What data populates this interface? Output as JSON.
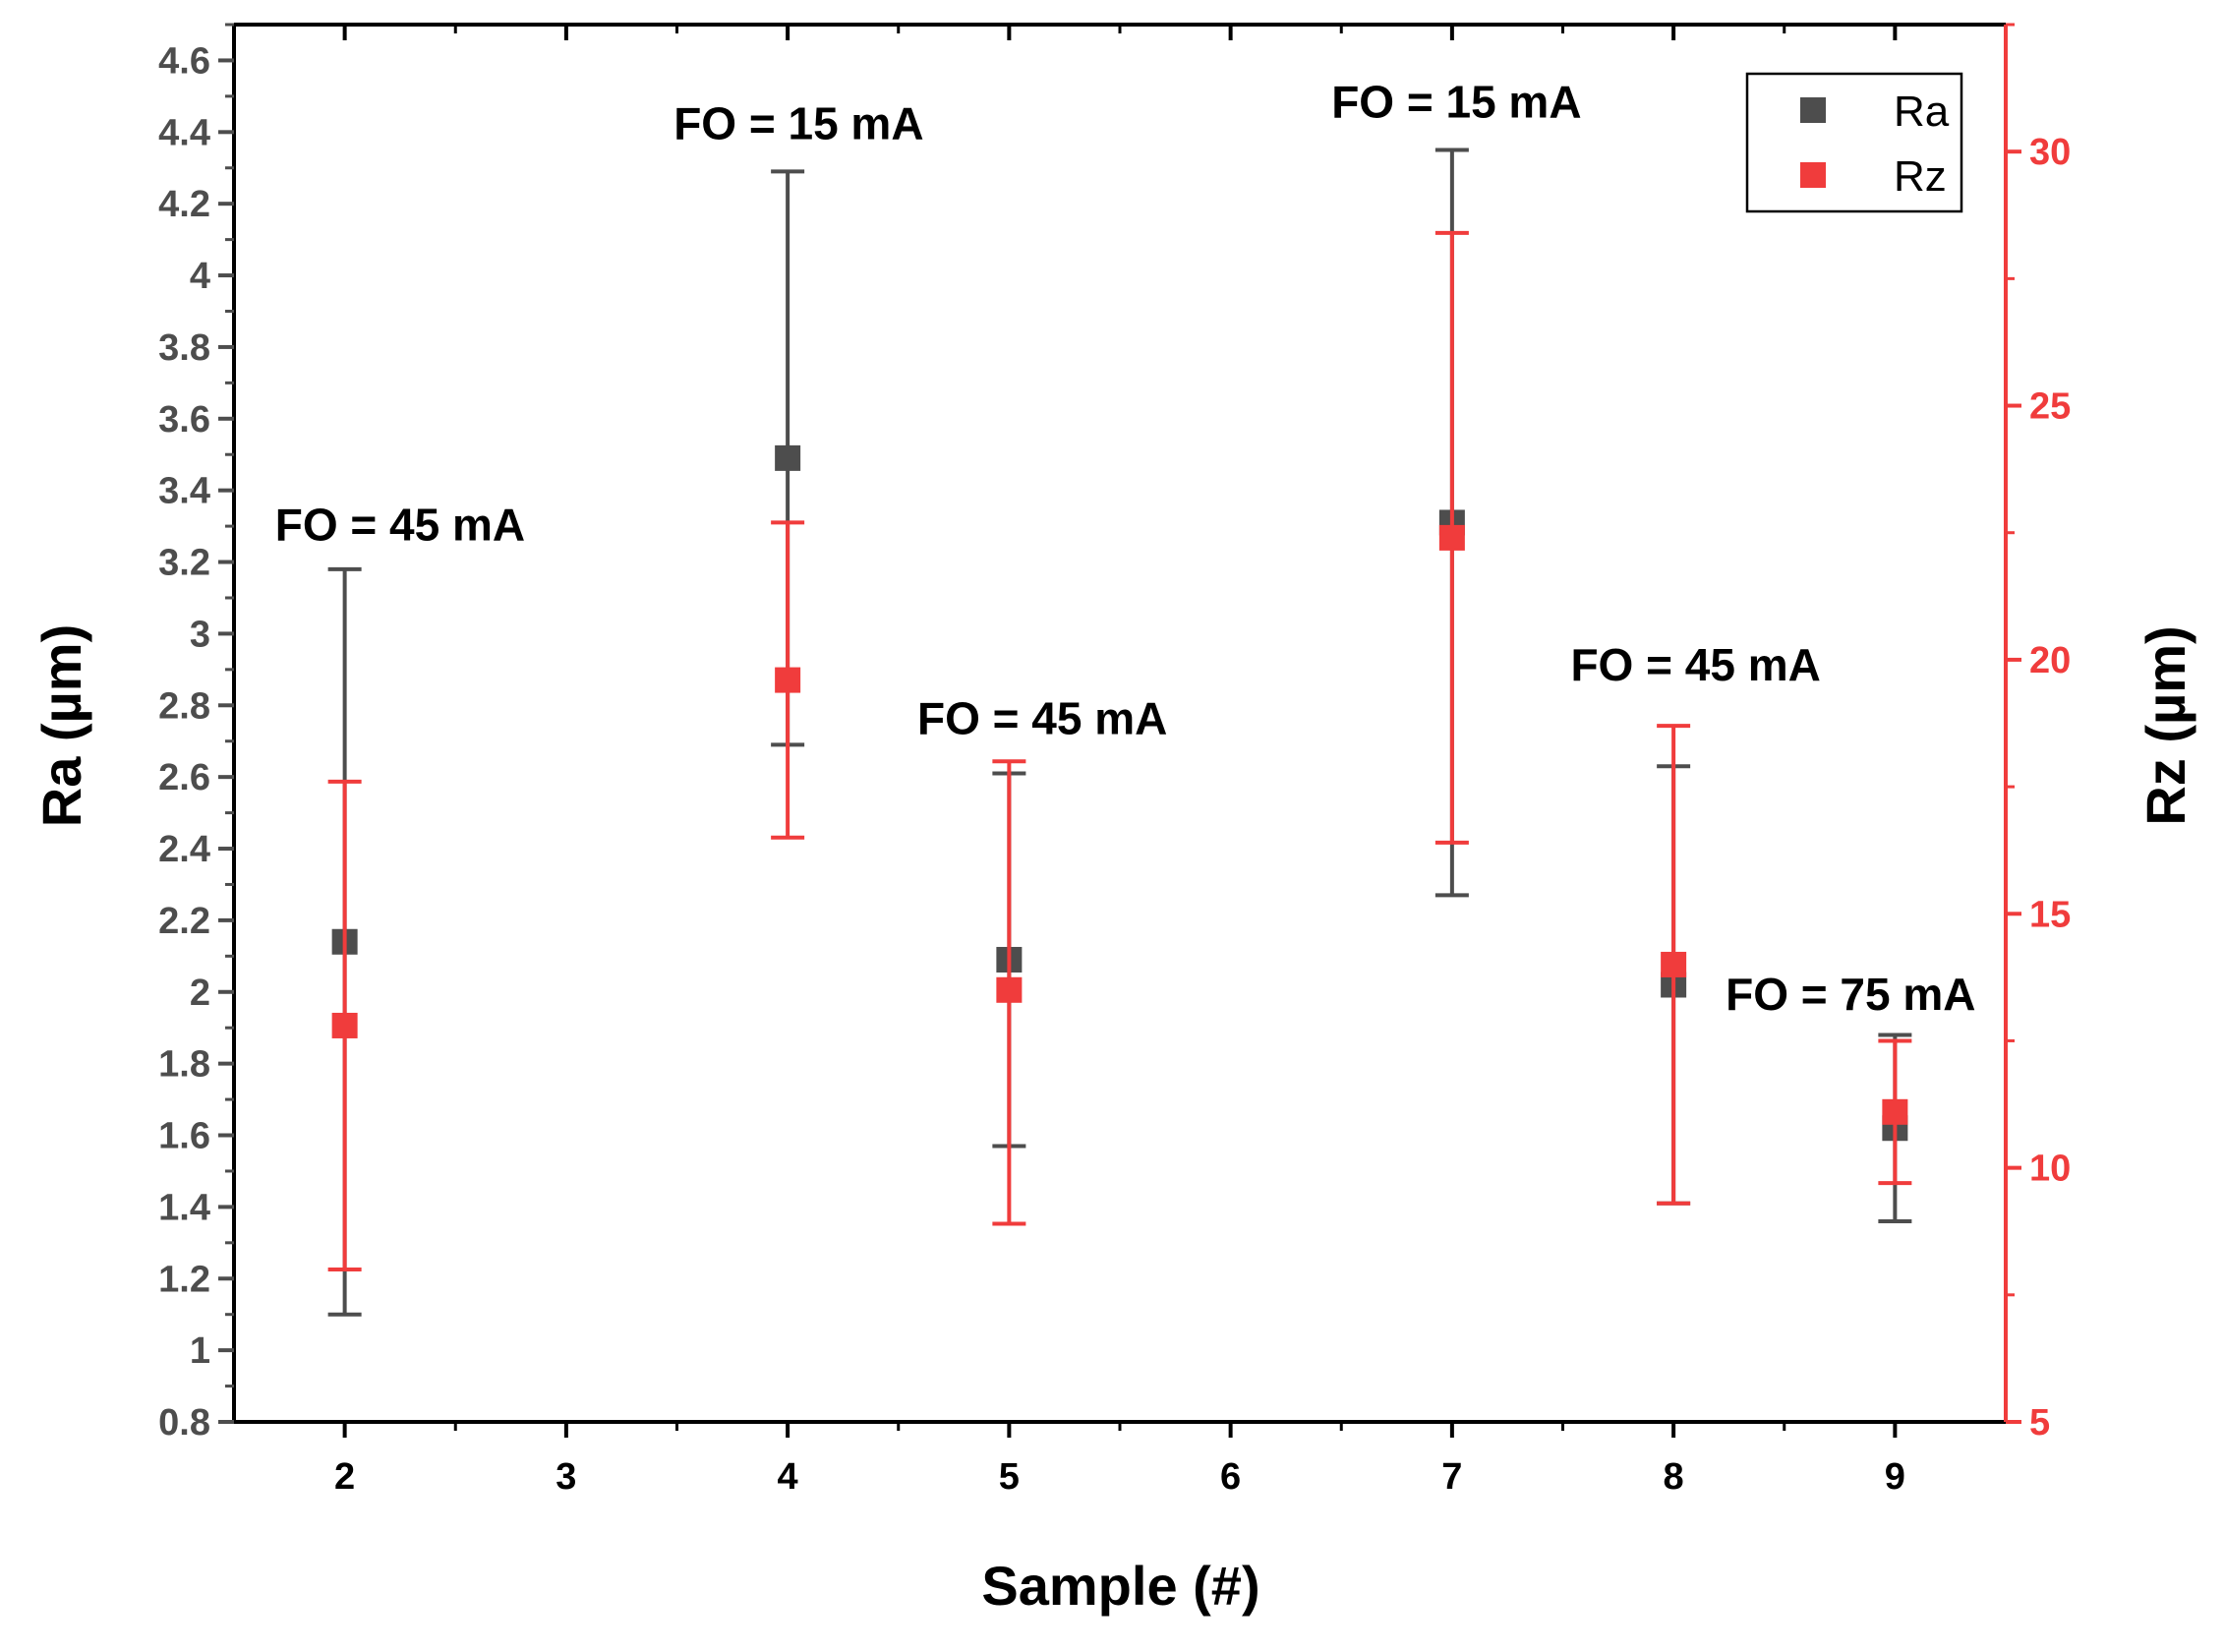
{
  "chart_data": {
    "type": "scatter",
    "xlabel": "Sample (#)",
    "ylabel_left": "Ra (µm)",
    "ylabel_right": "Rz (µm)",
    "x_ticks": [
      2,
      3,
      4,
      5,
      6,
      7,
      8,
      9
    ],
    "x_range": [
      1.5,
      9.5
    ],
    "y_left_range": [
      0.8,
      4.7
    ],
    "y_left_ticks": [
      "0.8",
      "1",
      "1.2",
      "1.4",
      "1.6",
      "1.8",
      "2",
      "2.2",
      "2.4",
      "2.6",
      "2.8",
      "3",
      "3.2",
      "3.4",
      "3.6",
      "3.8",
      "4",
      "4.2",
      "4.4",
      "4.6"
    ],
    "y_right_range": [
      5,
      32.5
    ],
    "y_right_ticks": [
      "5",
      "10",
      "15",
      "20",
      "25",
      "30"
    ],
    "series": [
      {
        "name": "Ra",
        "axis": "left",
        "color": "#4d4d4d",
        "x": [
          2,
          4,
          5,
          7,
          8,
          9
        ],
        "y": [
          2.14,
          3.49,
          2.09,
          3.31,
          2.02,
          1.62
        ],
        "error_low": [
          1.1,
          2.69,
          1.57,
          2.27,
          1.41,
          1.36
        ],
        "error_high": [
          3.18,
          4.29,
          2.61,
          4.35,
          2.63,
          1.88
        ]
      },
      {
        "name": "Rz",
        "axis": "right",
        "color": "#f03c3c",
        "x": [
          2,
          4,
          5,
          7,
          8,
          9
        ],
        "y": [
          12.8,
          19.6,
          13.5,
          22.4,
          14.0,
          11.1
        ],
        "error_low": [
          8.0,
          16.5,
          8.9,
          16.4,
          9.3,
          9.7
        ],
        "error_high": [
          17.6,
          22.7,
          18.0,
          28.4,
          18.7,
          12.5
        ]
      }
    ],
    "annotations": [
      {
        "text": "FO = 45 mA",
        "x": 2.25,
        "y": 3.26
      },
      {
        "text": "FO = 15 mA",
        "x": 4.05,
        "y": 4.38
      },
      {
        "text": "FO = 45 mA",
        "x": 5.15,
        "y": 2.72
      },
      {
        "text": "FO = 15 mA",
        "x": 7.02,
        "y": 4.44
      },
      {
        "text": "FO = 45 mA",
        "x": 8.1,
        "y": 2.87
      },
      {
        "text": "FO = 75 mA",
        "x": 8.8,
        "y": 1.95
      }
    ],
    "legend": {
      "position": "top-right",
      "entries": [
        "Ra",
        "Rz"
      ]
    }
  }
}
